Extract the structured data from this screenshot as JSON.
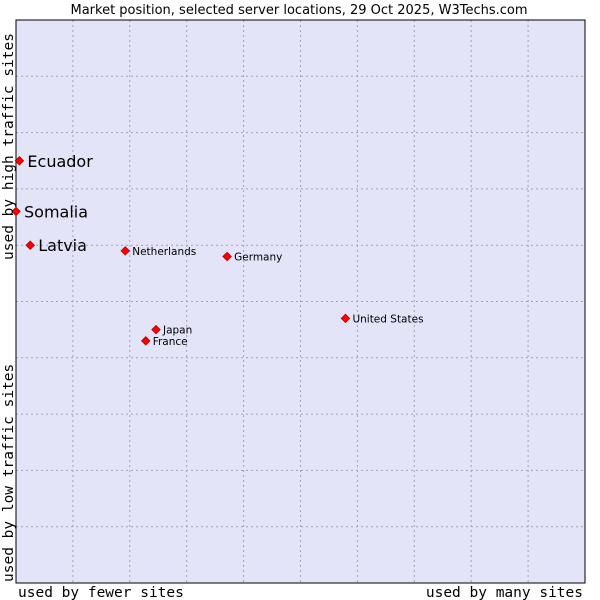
{
  "chart_data": {
    "type": "scatter",
    "title": "Market position, selected server locations, 29 Oct 2025, W3Techs.com",
    "xlabel_left": "used by fewer sites",
    "xlabel_right": "used by many sites",
    "ylabel_top": "used by high traffic sites",
    "ylabel_bottom": "used by low traffic sites",
    "xlim": [
      0,
      10
    ],
    "ylim": [
      0,
      10
    ],
    "grid": true,
    "colors": {
      "plot_background": "#e4e4f8",
      "marker": "#ff0000",
      "marker_edge": "#b00000",
      "grid": "#a0a0c0",
      "border": "#000000"
    },
    "points": [
      {
        "name": "Ecuador",
        "x": 0.06,
        "y": 7.5,
        "highlight": true
      },
      {
        "name": "Somalia",
        "x": 0.0,
        "y": 6.6,
        "highlight": true
      },
      {
        "name": "Latvia",
        "x": 0.25,
        "y": 6.0,
        "highlight": true
      },
      {
        "name": "Netherlands",
        "x": 1.92,
        "y": 5.9,
        "highlight": false
      },
      {
        "name": "Germany",
        "x": 3.71,
        "y": 5.8,
        "highlight": false
      },
      {
        "name": "United States",
        "x": 5.79,
        "y": 4.7,
        "highlight": false
      },
      {
        "name": "Japan",
        "x": 2.46,
        "y": 4.5,
        "highlight": false
      },
      {
        "name": "France",
        "x": 2.28,
        "y": 4.3,
        "highlight": false
      }
    ]
  }
}
